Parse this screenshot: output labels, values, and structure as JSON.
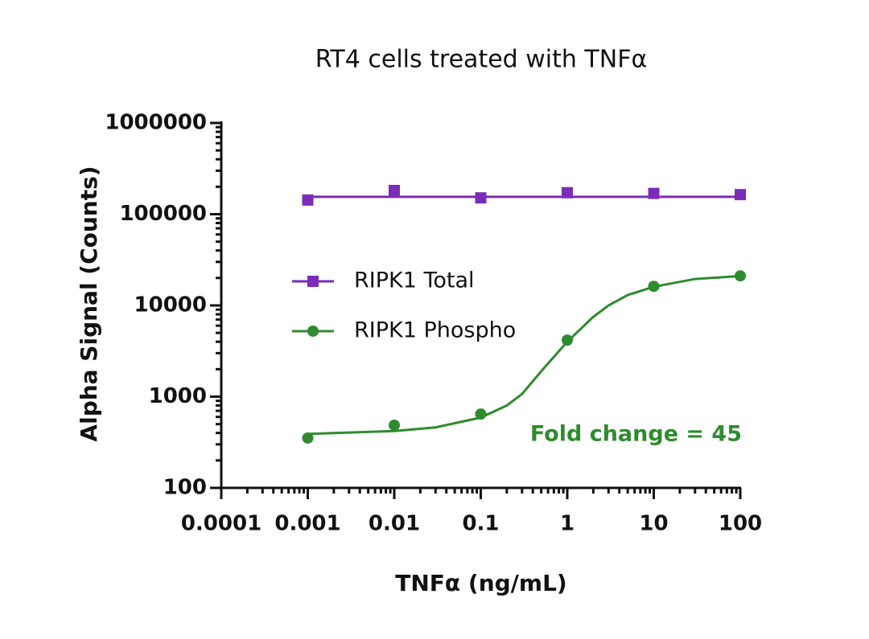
{
  "chart_data": {
    "type": "scatter",
    "title": "RT4 cells treated with TNFα",
    "x_label": "TNFα (ng/mL)",
    "y_label": "Alpha Signal (Counts)",
    "x_scale": "log",
    "y_scale": "log",
    "xlim": [
      0.0001,
      100
    ],
    "ylim": [
      100,
      1000000
    ],
    "xticks": [
      0.0001,
      0.001,
      0.01,
      0.1,
      1,
      10,
      100
    ],
    "yticks": [
      100,
      1000,
      10000,
      100000,
      1000000
    ],
    "minor_ticks": true,
    "legend": "center-left",
    "x": [
      0.001,
      0.01,
      0.1,
      1,
      10,
      100
    ],
    "series": [
      {
        "name": "RIPK1 Total",
        "color": "#7b2cb8",
        "marker": "square",
        "values": [
          143000,
          182000,
          151000,
          172000,
          169000,
          164000
        ],
        "fit": {
          "x": [
            0.001,
            100
          ],
          "values": [
            155000,
            155000
          ]
        }
      },
      {
        "name": "RIPK1 Phospho",
        "color": "#2e8b2e",
        "marker": "circle",
        "values": [
          352,
          487,
          645,
          4170,
          16200,
          21100
        ],
        "fit": {
          "x": [
            0.001,
            0.01,
            0.03,
            0.1,
            0.2,
            0.3,
            0.5,
            1,
            2,
            3,
            5,
            10,
            30,
            100
          ],
          "values": [
            390,
            420,
            460,
            590,
            800,
            1070,
            1900,
            4000,
            7500,
            10000,
            13000,
            16000,
            19500,
            21000
          ]
        }
      }
    ],
    "annotation": {
      "text": "Fold change = 45",
      "color": "#2e8b2e"
    }
  }
}
